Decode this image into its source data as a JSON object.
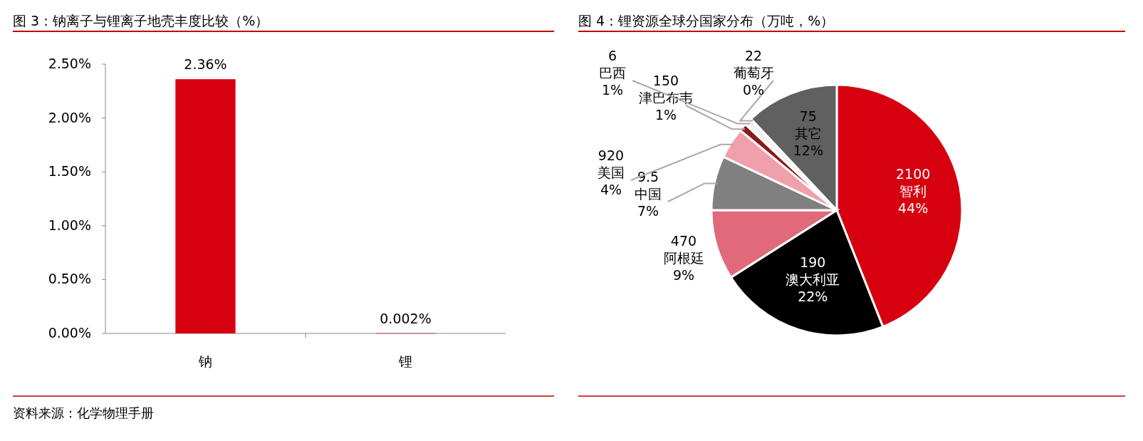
{
  "chart_data": [
    {
      "type": "bar",
      "title": "图 3：钠离子与锂离子地壳丰度比较（%）",
      "categories": [
        "钠",
        "锂"
      ],
      "values": [
        2.36,
        0.002
      ],
      "color": "#d7000f",
      "ylim": [
        0,
        2.5
      ],
      "yticks": [
        {
          "value": 0,
          "label": "0.00%"
        },
        {
          "value": 0.5,
          "label": "0.50%"
        },
        {
          "value": 1,
          "label": "1.00%"
        },
        {
          "value": 1.5,
          "label": "1.50%"
        },
        {
          "value": 2,
          "label": "2.00%"
        },
        {
          "value": 2.5,
          "label": "2.50%"
        }
      ],
      "value_labels": [
        "2.36%",
        "0.002%"
      ],
      "annotations": [
        "资料来源：化学物理手册"
      ]
    },
    {
      "type": "pie",
      "title": "图 4：锂资源全球分国家分布（万吨，%）",
      "categories": [
        "智利",
        "澳大利亚",
        "阿根廷",
        "中国",
        "美国",
        "津巴布韦",
        "巴西",
        "葡萄牙",
        "其它"
      ],
      "values": [
        44,
        22,
        9,
        7,
        4,
        1,
        1,
        0,
        12
      ],
      "colors": [
        "#d7000f",
        "#000000",
        "#e0697a",
        "#808080",
        "#f0a0ab",
        "#8b1a1a",
        "#f2f2f2",
        "#ffffff",
        "#606060"
      ],
      "value_labels": [
        "44%",
        "22%",
        "9%",
        "7%",
        "4%",
        "1%",
        "1%",
        "0%",
        "12%"
      ],
      "annotations": [
        {
          "text": "2100",
          "x": "智利"
        },
        {
          "text": "190",
          "x": "澳大利亚"
        },
        {
          "text": "470",
          "x": "阿根廷"
        },
        {
          "text": "9.5",
          "x": "中国"
        },
        {
          "text": "920",
          "x": "美国"
        },
        {
          "text": "150",
          "x": "津巴布韦"
        },
        {
          "text": "6",
          "x": "巴西"
        },
        {
          "text": "22",
          "x": "葡萄牙"
        },
        {
          "text": "75",
          "x": "其它"
        }
      ]
    }
  ]
}
